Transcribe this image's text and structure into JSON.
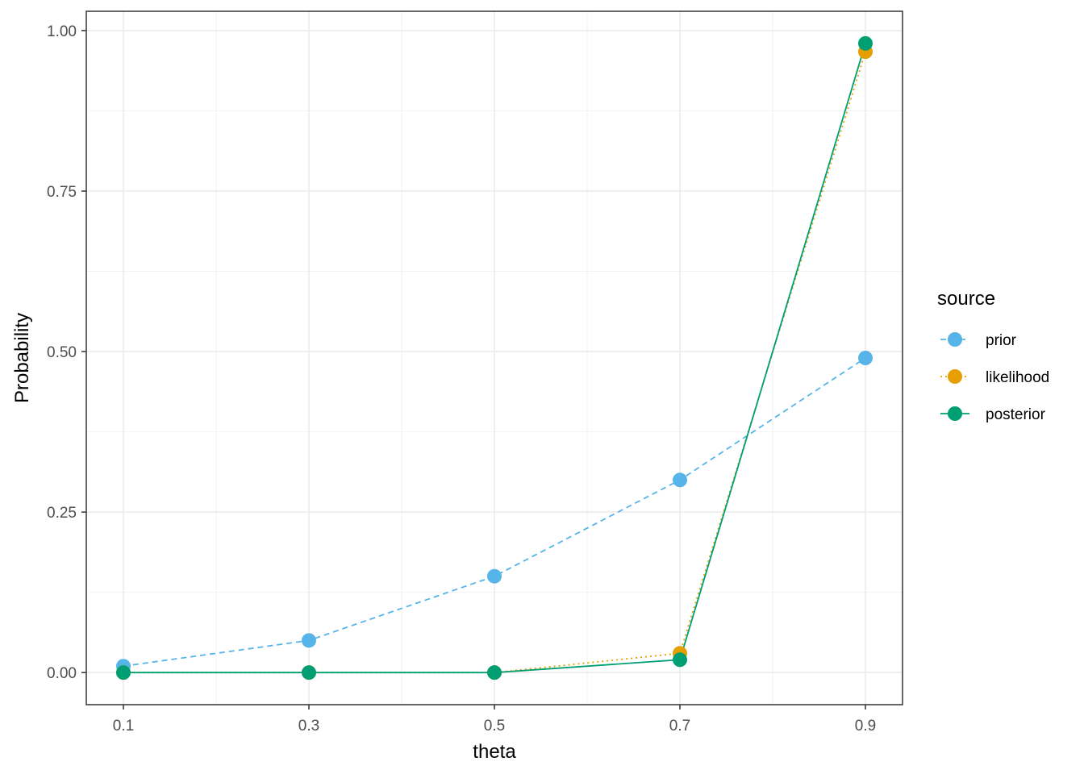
{
  "chart_data": {
    "type": "line",
    "xlabel": "theta",
    "ylabel": "Probability",
    "x": [
      0.1,
      0.3,
      0.5,
      0.7,
      0.9
    ],
    "x_tick_labels": [
      "0.1",
      "0.3",
      "0.5",
      "0.7",
      "0.9"
    ],
    "xlim": [
      0.06,
      0.94
    ],
    "ylim": [
      -0.05,
      1.03
    ],
    "y_ticks": [
      0,
      0.25,
      0.5,
      0.75,
      1
    ],
    "y_tick_labels": [
      "0.00",
      "0.25",
      "0.50",
      "0.75",
      "1.00"
    ],
    "grid": true,
    "legend": {
      "title": "source",
      "position": "right"
    },
    "series": [
      {
        "name": "prior",
        "values": [
          0.01,
          0.05,
          0.15,
          0.3,
          0.49
        ],
        "color": "#56B4E9",
        "linetype": "dashed"
      },
      {
        "name": "likelihood",
        "values": [
          0.0,
          0.0,
          0.0,
          0.03,
          0.967
        ],
        "color": "#E69F00",
        "linetype": "dotted"
      },
      {
        "name": "posterior",
        "values": [
          0.0,
          0.0,
          0.0,
          0.02,
          0.98
        ],
        "color": "#009E73",
        "linetype": "solid"
      }
    ]
  }
}
